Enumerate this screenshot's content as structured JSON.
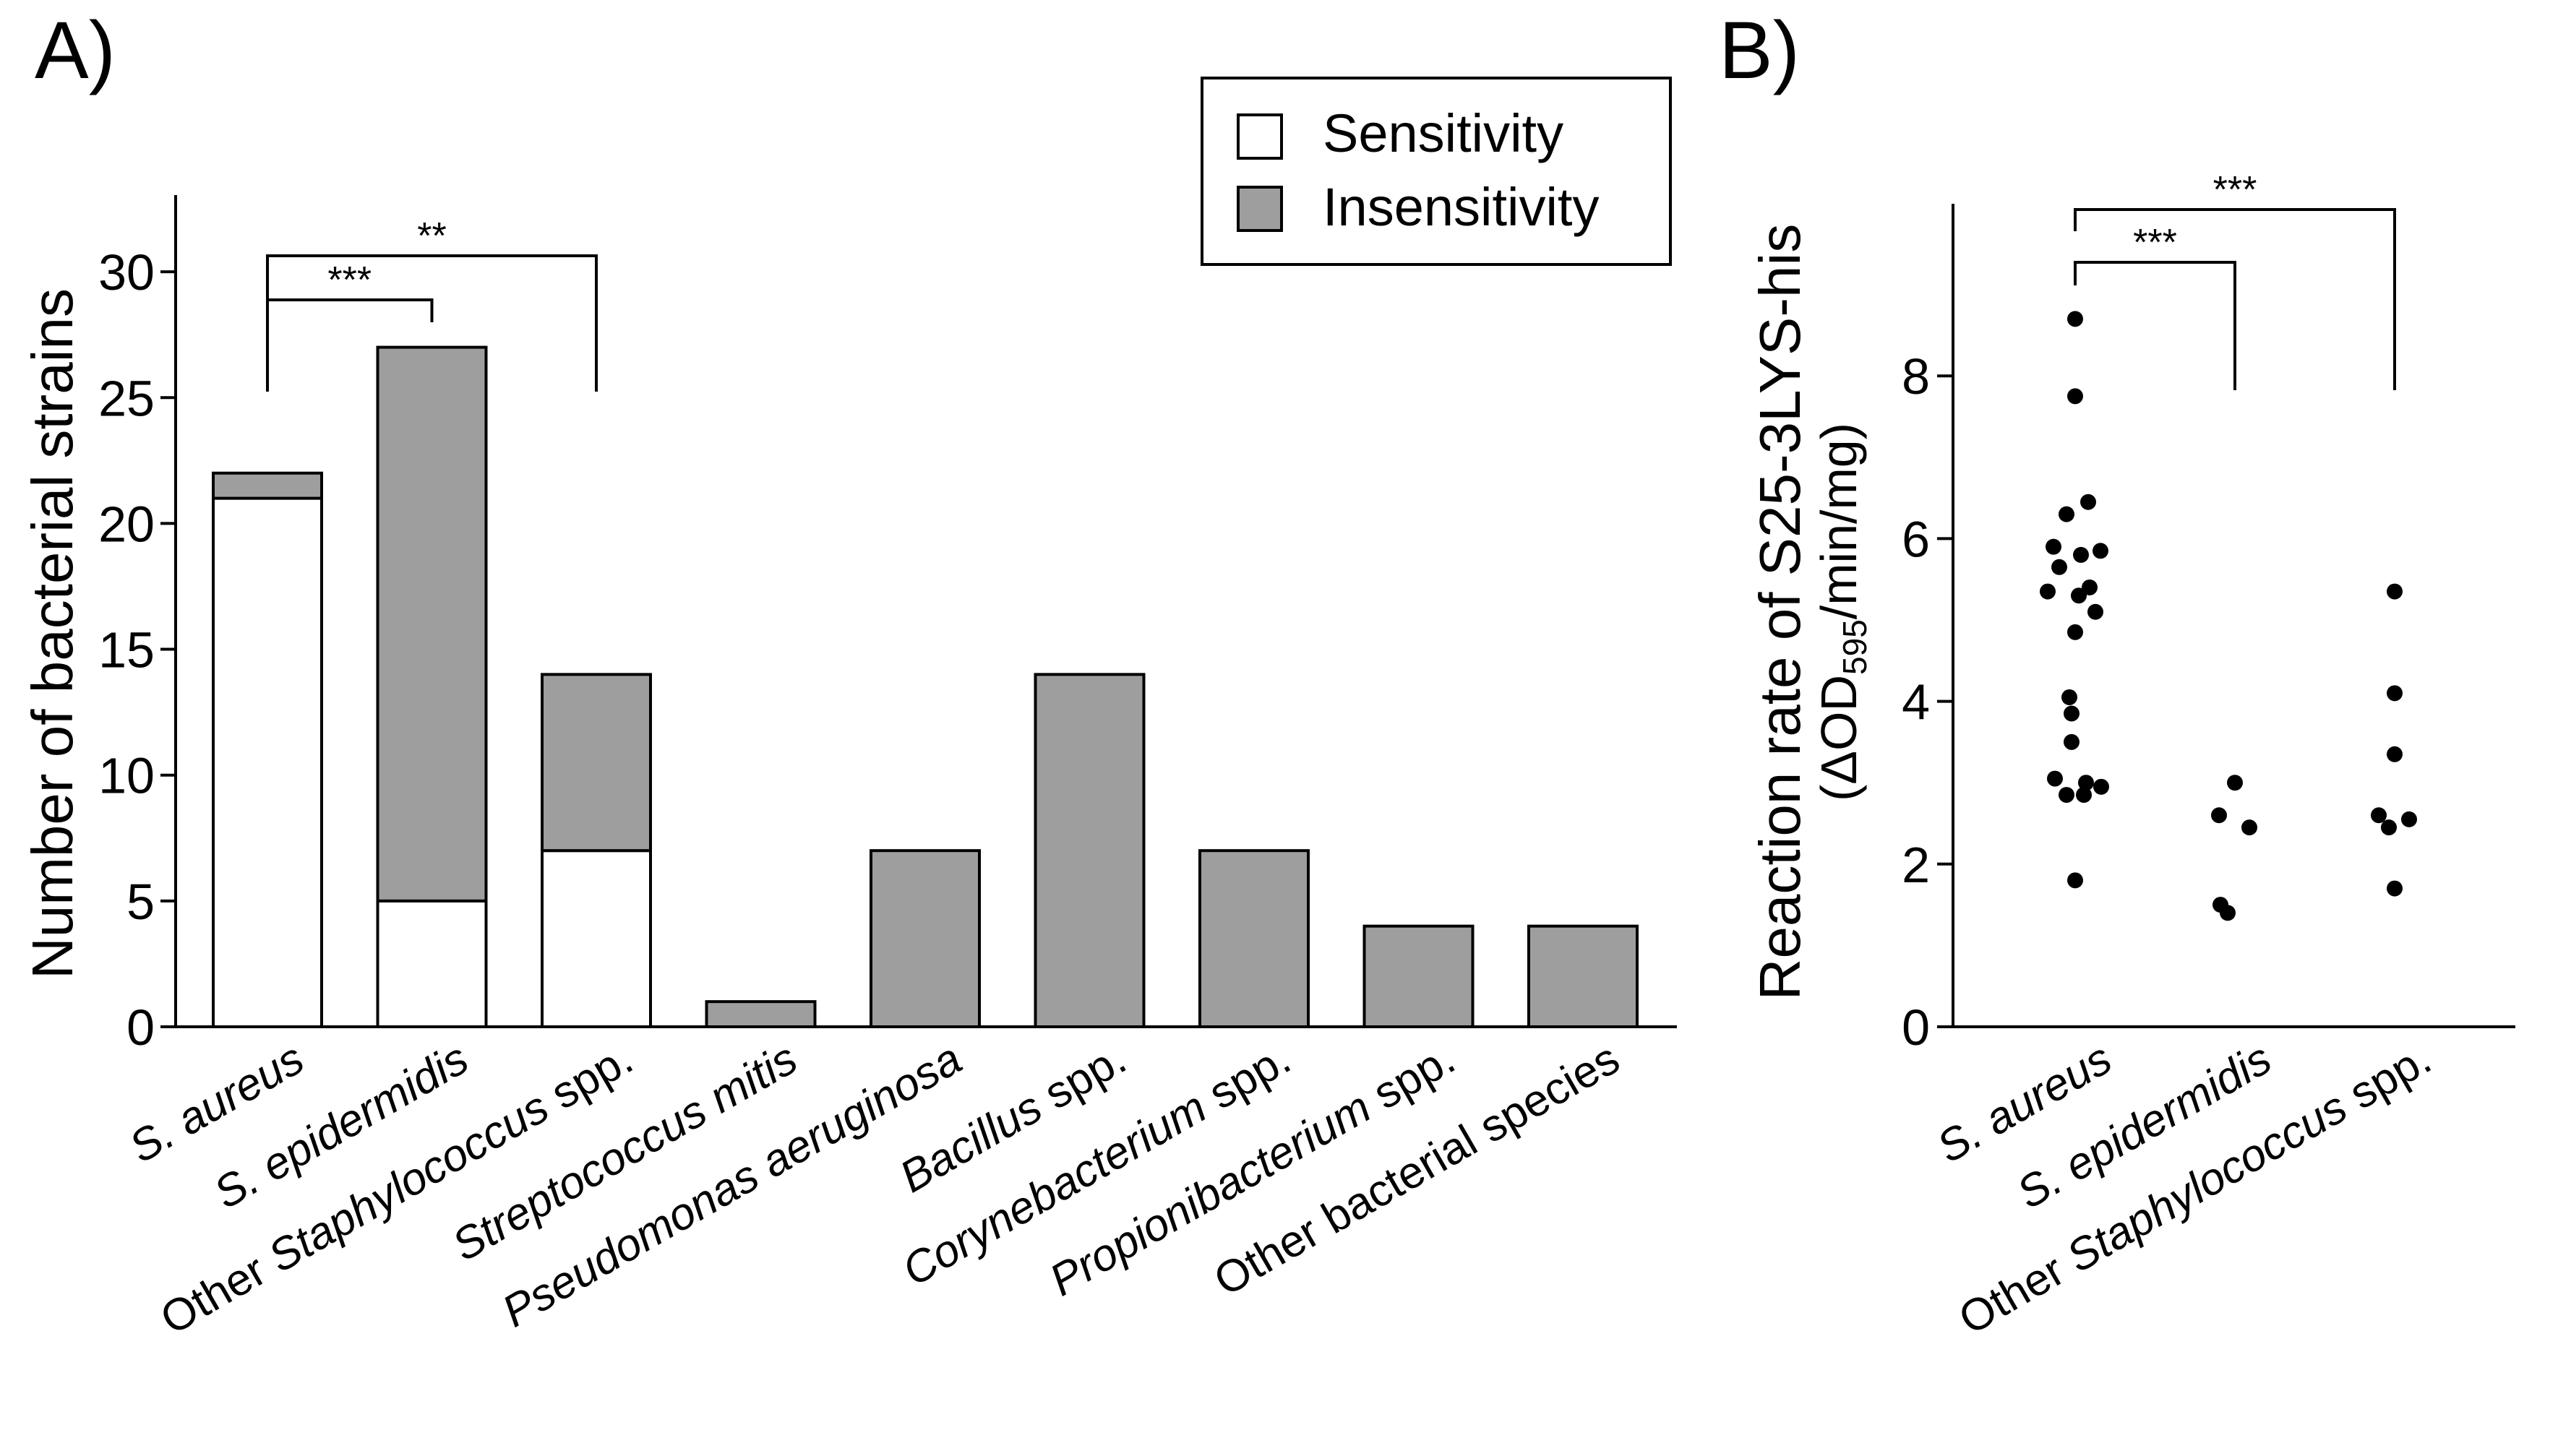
{
  "chart_data": [
    {
      "panel": "A)",
      "type": "bar",
      "stacked": true,
      "ylabel": "Number of  bacterial strains",
      "xlabel": "",
      "ylim": [
        0,
        33
      ],
      "yticks": [
        0,
        5,
        10,
        15,
        20,
        25,
        30
      ],
      "categories": [
        {
          "pre": "",
          "ital": "S. aureus",
          "post": ""
        },
        {
          "pre": "",
          "ital": "S. epidermidis",
          "post": ""
        },
        {
          "pre": "Other ",
          "ital": "Staphylococcus",
          "post": " spp."
        },
        {
          "pre": "",
          "ital": "Streptococcus mitis",
          "post": ""
        },
        {
          "pre": "",
          "ital": "Pseudomonas aeruginosa",
          "post": ""
        },
        {
          "pre": "",
          "ital": "Bacillus",
          "post": " spp."
        },
        {
          "pre": "",
          "ital": "Corynebacterium",
          "post": " spp."
        },
        {
          "pre": "",
          "ital": "Propionibacterium",
          "post": " spp."
        },
        {
          "pre": "",
          "ital": "",
          "post": "Other bacterial species"
        }
      ],
      "series": [
        {
          "name": "Sensitivity",
          "color": "#ffffff",
          "values": [
            21,
            5,
            7,
            0,
            0,
            0,
            0,
            0,
            0
          ]
        },
        {
          "name": "Insensitivity",
          "color": "#9e9e9e",
          "values": [
            1,
            22,
            7,
            1,
            7,
            14,
            7,
            4,
            4
          ]
        }
      ],
      "legend": {
        "position": "top-right",
        "entries": [
          "Sensitivity",
          "Insensitivity"
        ]
      },
      "significance": [
        {
          "from": 0,
          "to": 1,
          "label": "***"
        },
        {
          "from": 0,
          "to": 2,
          "label": "**"
        }
      ]
    },
    {
      "panel": "B)",
      "type": "scatter",
      "ylabel_line1": "Reaction rate of S25-3LYS-his",
      "ylabel_line2": {
        "pre": "(ΔOD",
        "sub": "595",
        "post": "/min/mg)"
      },
      "ylim": [
        0,
        10
      ],
      "yticks": [
        0,
        2,
        4,
        6,
        8
      ],
      "categories": [
        {
          "pre": "",
          "ital": "S. aureus",
          "post": ""
        },
        {
          "pre": "",
          "ital": "S. epidermidis",
          "post": ""
        },
        {
          "pre": "Other ",
          "ital": "Staphylococcus",
          "post": " spp."
        }
      ],
      "points": [
        [
          8.7,
          7.75,
          6.45,
          6.3,
          5.85,
          5.9,
          5.8,
          5.65,
          5.35,
          5.4,
          5.3,
          5.1,
          4.85,
          4.05,
          3.85,
          3.5,
          3.05,
          3.0,
          2.95,
          2.85,
          2.85,
          1.8
        ],
        [
          3.0,
          2.6,
          2.45,
          1.5,
          1.4
        ],
        [
          5.35,
          4.1,
          3.35,
          2.6,
          2.55,
          2.45,
          1.7
        ]
      ],
      "significance": [
        {
          "from": 0,
          "to": 1,
          "label": "***"
        },
        {
          "from": 0,
          "to": 2,
          "label": "***"
        }
      ]
    }
  ]
}
